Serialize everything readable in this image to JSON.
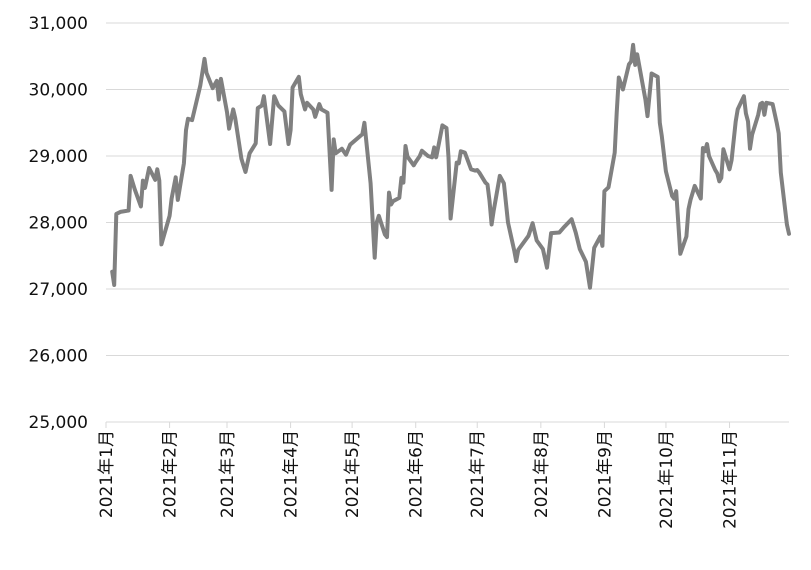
{
  "chart_data": {
    "type": "line",
    "title": "",
    "xlabel": "",
    "ylabel": "",
    "ylim": [
      25000,
      31000
    ],
    "yticks": [
      25000,
      26000,
      27000,
      28000,
      29000,
      30000,
      31000
    ],
    "ytick_labels": [
      "25,000",
      "26,000",
      "27,000",
      "28,000",
      "29,000",
      "30,000",
      "31,000"
    ],
    "xlim": [
      "2021-01-01",
      "2021-11-30"
    ],
    "xticks": [
      "2021-01-01",
      "2021-02-01",
      "2021-03-01",
      "2021-04-01",
      "2021-05-01",
      "2021-06-01",
      "2021-07-01",
      "2021-08-01",
      "2021-09-01",
      "2021-10-01",
      "2021-11-01"
    ],
    "xtick_labels": [
      "2021年1月",
      "2021年2月",
      "2021年3月",
      "2021年4月",
      "2021年5月",
      "2021年6月",
      "2021年7月",
      "2021年8月",
      "2021年9月",
      "2021年10月",
      "2021年11月"
    ],
    "grid": "horizontal",
    "line_color": "#808080",
    "grid_color": "#d9d9d9",
    "series": [
      {
        "x": [
          "2021-01-04",
          "2021-01-05",
          "2021-01-06",
          "2021-01-08",
          "2021-01-12",
          "2021-01-13",
          "2021-01-15",
          "2021-01-18",
          "2021-01-19",
          "2021-01-20",
          "2021-01-22",
          "2021-01-25",
          "2021-01-26",
          "2021-01-27",
          "2021-01-28",
          "2021-02-01",
          "2021-02-02",
          "2021-02-04",
          "2021-02-05",
          "2021-02-08",
          "2021-02-09",
          "2021-02-10",
          "2021-02-12",
          "2021-02-16",
          "2021-02-18",
          "2021-02-19",
          "2021-02-22",
          "2021-02-24",
          "2021-02-25",
          "2021-02-26",
          "2021-03-01",
          "2021-03-02",
          "2021-03-04",
          "2021-03-05",
          "2021-03-08",
          "2021-03-09",
          "2021-03-10",
          "2021-03-12",
          "2021-03-15",
          "2021-03-16",
          "2021-03-18",
          "2021-03-19",
          "2021-03-22",
          "2021-03-24",
          "2021-03-26",
          "2021-03-29",
          "2021-03-31",
          "2021-04-01",
          "2021-04-02",
          "2021-04-05",
          "2021-04-06",
          "2021-04-08",
          "2021-04-09",
          "2021-04-12",
          "2021-04-13",
          "2021-04-15",
          "2021-04-16",
          "2021-04-19",
          "2021-04-21",
          "2021-04-22",
          "2021-04-23",
          "2021-04-26",
          "2021-04-28",
          "2021-04-30",
          "2021-05-06",
          "2021-05-07",
          "2021-05-10",
          "2021-05-12",
          "2021-05-13",
          "2021-05-14",
          "2021-05-17",
          "2021-05-18",
          "2021-05-19",
          "2021-05-20",
          "2021-05-21",
          "2021-05-24",
          "2021-05-25",
          "2021-05-26",
          "2021-05-27",
          "2021-05-28",
          "2021-05-31",
          "2021-06-01",
          "2021-06-03",
          "2021-06-04",
          "2021-06-07",
          "2021-06-09",
          "2021-06-10",
          "2021-06-11",
          "2021-06-14",
          "2021-06-16",
          "2021-06-17",
          "2021-06-18",
          "2021-06-21",
          "2021-06-22",
          "2021-06-23",
          "2021-06-25",
          "2021-06-28",
          "2021-06-30",
          "2021-07-01",
          "2021-07-02",
          "2021-07-05",
          "2021-07-06",
          "2021-07-07",
          "2021-07-08",
          "2021-07-09",
          "2021-07-12",
          "2021-07-14",
          "2021-07-16",
          "2021-07-19",
          "2021-07-20",
          "2021-07-21",
          "2021-07-26",
          "2021-07-28",
          "2021-07-30",
          "2021-08-02",
          "2021-08-04",
          "2021-08-06",
          "2021-08-10",
          "2021-08-12",
          "2021-08-16",
          "2021-08-18",
          "2021-08-20",
          "2021-08-23",
          "2021-08-25",
          "2021-08-27",
          "2021-08-30",
          "2021-08-31",
          "2021-09-01",
          "2021-09-03",
          "2021-09-06",
          "2021-09-07",
          "2021-09-08",
          "2021-09-10",
          "2021-09-13",
          "2021-09-14",
          "2021-09-15",
          "2021-09-16",
          "2021-09-17",
          "2021-09-21",
          "2021-09-22",
          "2021-09-24",
          "2021-09-27",
          "2021-09-28",
          "2021-09-29",
          "2021-10-01",
          "2021-10-04",
          "2021-10-05",
          "2021-10-06",
          "2021-10-08",
          "2021-10-11",
          "2021-10-12",
          "2021-10-13",
          "2021-10-15",
          "2021-10-18",
          "2021-10-19",
          "2021-10-20",
          "2021-10-21",
          "2021-10-22",
          "2021-10-25",
          "2021-10-26",
          "2021-10-27",
          "2021-10-28",
          "2021-10-29",
          "2021-11-01",
          "2021-11-02",
          "2021-11-04",
          "2021-11-05",
          "2021-11-08",
          "2021-11-09",
          "2021-11-10",
          "2021-11-11",
          "2021-11-12",
          "2021-11-15",
          "2021-11-16",
          "2021-11-17",
          "2021-11-18",
          "2021-11-19",
          "2021-11-22",
          "2021-11-24",
          "2021-11-25",
          "2021-11-26",
          "2021-11-29",
          "2021-11-30"
        ],
        "y": [
          27260,
          27060,
          28130,
          28160,
          28180,
          28700,
          28500,
          28240,
          28630,
          28520,
          28820,
          28640,
          28800,
          28630,
          27670,
          28100,
          28360,
          28680,
          28340,
          28890,
          29390,
          29560,
          29540,
          30060,
          30460,
          30250,
          30020,
          30130,
          29850,
          30160,
          29660,
          29410,
          29700,
          29570,
          28960,
          28860,
          28760,
          29040,
          29190,
          29720,
          29760,
          29900,
          29180,
          29900,
          29760,
          29670,
          29180,
          29390,
          30030,
          30190,
          29930,
          29700,
          29800,
          29700,
          29590,
          29780,
          29700,
          29650,
          28490,
          29250,
          29040,
          29110,
          29020,
          29170,
          29330,
          29500,
          28590,
          27470,
          28000,
          28100,
          27820,
          27780,
          28450,
          28270,
          28320,
          28370,
          28670,
          28600,
          29150,
          28990,
          28860,
          28910,
          29000,
          29080,
          29000,
          28980,
          29130,
          28980,
          29460,
          29420,
          28980,
          28060,
          28900,
          28890,
          29070,
          29050,
          28800,
          28780,
          28790,
          28750,
          28600,
          28570,
          28330,
          27970,
          28170,
          28700,
          28590,
          28000,
          27580,
          27420,
          27590,
          27800,
          27990,
          27730,
          27600,
          27320,
          27840,
          27850,
          27920,
          28050,
          27850,
          27600,
          27410,
          27020,
          27620,
          27790,
          27650,
          28470,
          28530,
          29050,
          29650,
          30180,
          30000,
          30380,
          30420,
          30670,
          30370,
          30530,
          29850,
          29600,
          30240,
          30190,
          29500,
          29300,
          28770,
          28400,
          28360,
          28470,
          27530,
          27790,
          28200,
          28340,
          28550,
          28360,
          29120,
          29070,
          29180,
          29000,
          28790,
          28740,
          28620,
          28670,
          29100,
          28800,
          28940,
          29520,
          29700,
          29900,
          29640,
          29520,
          29110,
          29320,
          29620,
          29780,
          29800,
          29620,
          29800,
          29780,
          29500,
          29340,
          28750,
          27970,
          27830
        ]
      }
    ]
  }
}
